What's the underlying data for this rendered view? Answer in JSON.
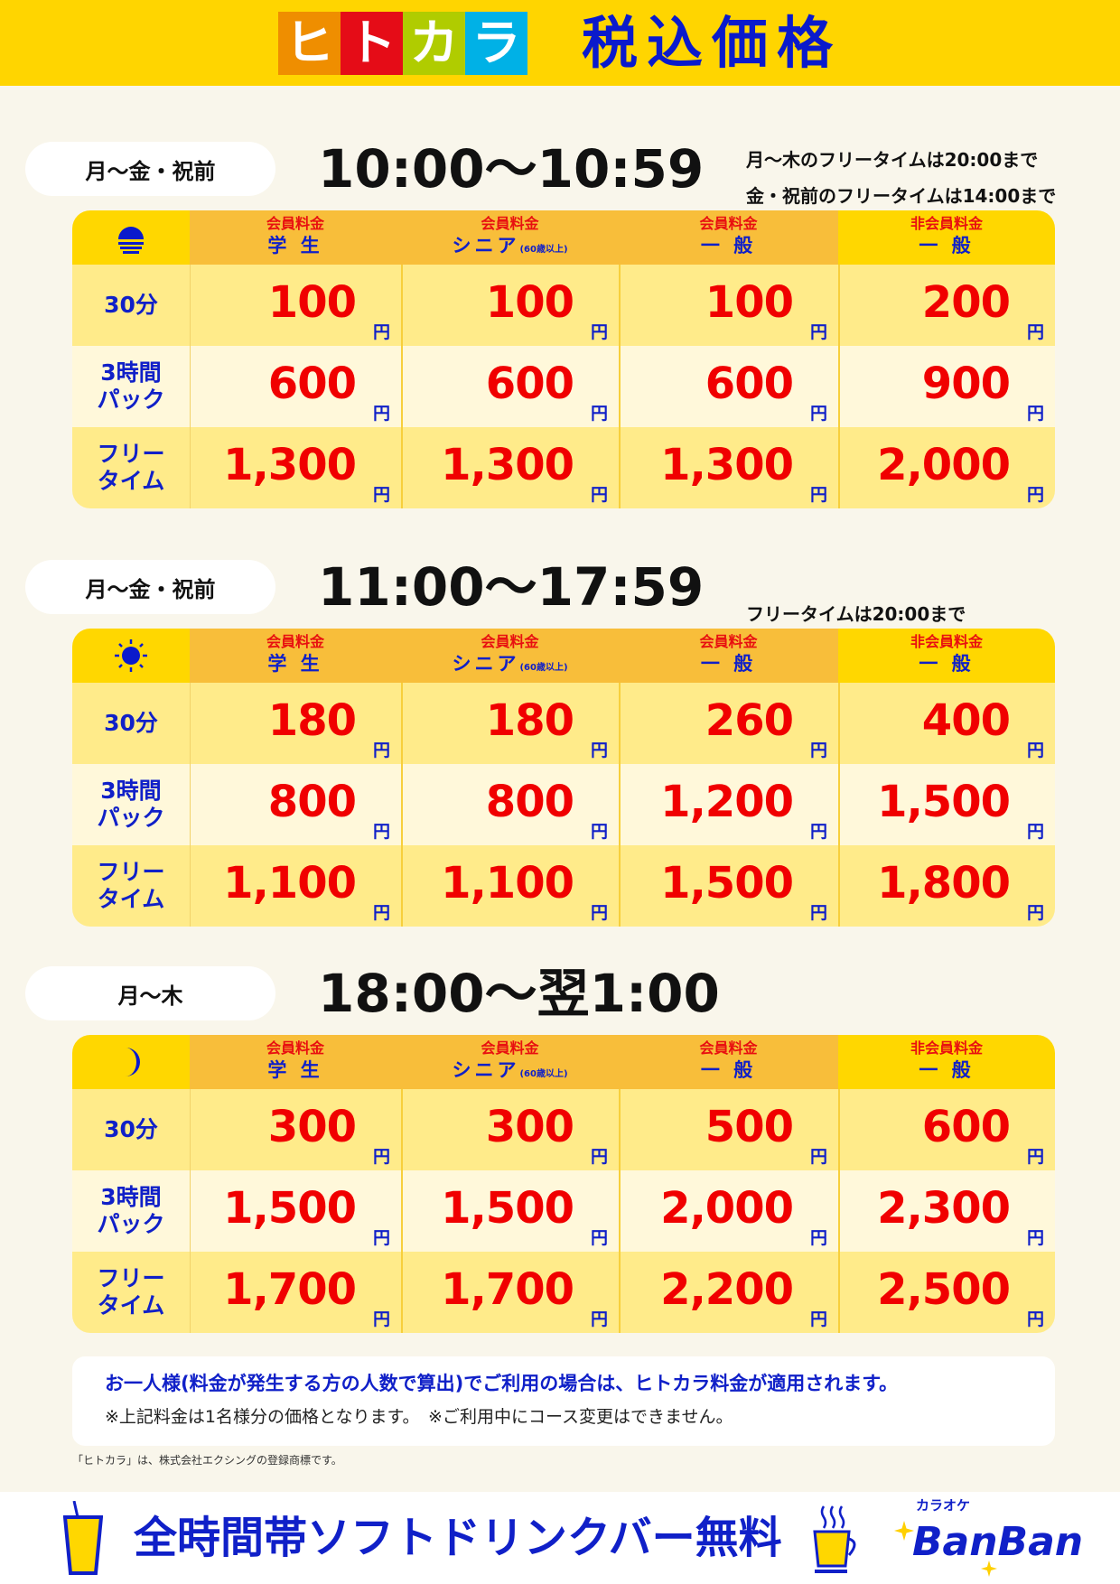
{
  "header": {
    "logo_chars": [
      "ヒ",
      "ト",
      "カ",
      "ラ"
    ],
    "logo_colors": [
      "#EF8E00",
      "#E50C17",
      "#B0CC00",
      "#00B1E6"
    ],
    "title": "税込価格"
  },
  "columns": [
    {
      "sub": "会員料金",
      "main": "学 生",
      "note": ""
    },
    {
      "sub": "会員料金",
      "main": "シニア",
      "note": "(60歳以上)"
    },
    {
      "sub": "会員料金",
      "main": "一 般",
      "note": ""
    },
    {
      "sub": "非会員料金",
      "main": "一 般",
      "note": ""
    }
  ],
  "row_labels": [
    "30分",
    "3時間\nパック",
    "フリー\nタイム"
  ],
  "yen": "円",
  "sections": [
    {
      "days": "月〜金・祝前",
      "time": "10:00〜10:59",
      "icon": "sunrise-icon",
      "notes": [
        "月〜木のフリータイムは20:00まで",
        "金・祝前のフリータイムは14:00まで"
      ],
      "prices": [
        [
          "100",
          "100",
          "100",
          "200"
        ],
        [
          "600",
          "600",
          "600",
          "900"
        ],
        [
          "1,300",
          "1,300",
          "1,300",
          "2,000"
        ]
      ]
    },
    {
      "days": "月〜金・祝前",
      "time": "11:00〜17:59",
      "icon": "sun-icon",
      "notes": [
        "",
        "フリータイムは20:00まで"
      ],
      "prices": [
        [
          "180",
          "180",
          "260",
          "400"
        ],
        [
          "800",
          "800",
          "1,200",
          "1,500"
        ],
        [
          "1,100",
          "1,100",
          "1,500",
          "1,800"
        ]
      ]
    },
    {
      "days": "月〜木",
      "time": "18:00〜翌1:00",
      "icon": "moon-icon",
      "notes": [],
      "prices": [
        [
          "300",
          "300",
          "500",
          "600"
        ],
        [
          "1,500",
          "1,500",
          "2,000",
          "2,300"
        ],
        [
          "1,700",
          "1,700",
          "2,200",
          "2,500"
        ]
      ]
    }
  ],
  "notice": {
    "main": "お一人様(料金が発生する方の人数で算出)でご利用の場合は、ヒトカラ料金が適用されます。",
    "sub": "※上記料金は1名様分の価格となります。　※ご利用中にコース変更はできません。"
  },
  "trademark": "「ヒトカラ」は、株式会社エクシングの登録商標です。",
  "footer": {
    "text": "全時間帯ソフトドリンクバー無料",
    "brand_kana": "カラオケ",
    "brand_name": "BanBan"
  }
}
